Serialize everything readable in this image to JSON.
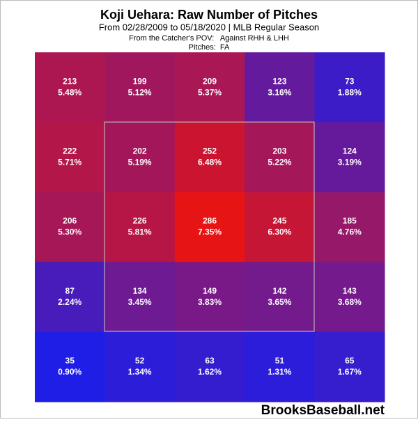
{
  "chart_data": {
    "type": "heatmap",
    "title": "Koji Uehara: Raw Number of Pitches",
    "subtitle": "From 02/28/2009 to 05/18/2020 | MLB Regular Season",
    "note_1": "From the Catcher's POV:   Against RHH & LHH",
    "note_2": "Pitches:  FA",
    "values": [
      [
        213,
        199,
        209,
        123,
        73
      ],
      [
        222,
        202,
        252,
        203,
        124
      ],
      [
        206,
        226,
        286,
        245,
        185
      ],
      [
        87,
        134,
        149,
        142,
        143
      ],
      [
        35,
        52,
        63,
        51,
        65
      ]
    ],
    "percent_labels": [
      [
        "5.48%",
        "5.12%",
        "5.37%",
        "3.16%",
        "1.88%"
      ],
      [
        "5.71%",
        "5.19%",
        "6.48%",
        "5.22%",
        "3.19%"
      ],
      [
        "5.30%",
        "5.81%",
        "7.35%",
        "6.30%",
        "4.76%"
      ],
      [
        "2.24%",
        "3.45%",
        "3.83%",
        "3.65%",
        "3.68%"
      ],
      [
        "0.90%",
        "1.34%",
        "1.62%",
        "1.31%",
        "1.67%"
      ]
    ],
    "colorscale": [
      "#1e1ee6",
      "#e61414"
    ],
    "watermark": "BrooksBaseball.net"
  }
}
